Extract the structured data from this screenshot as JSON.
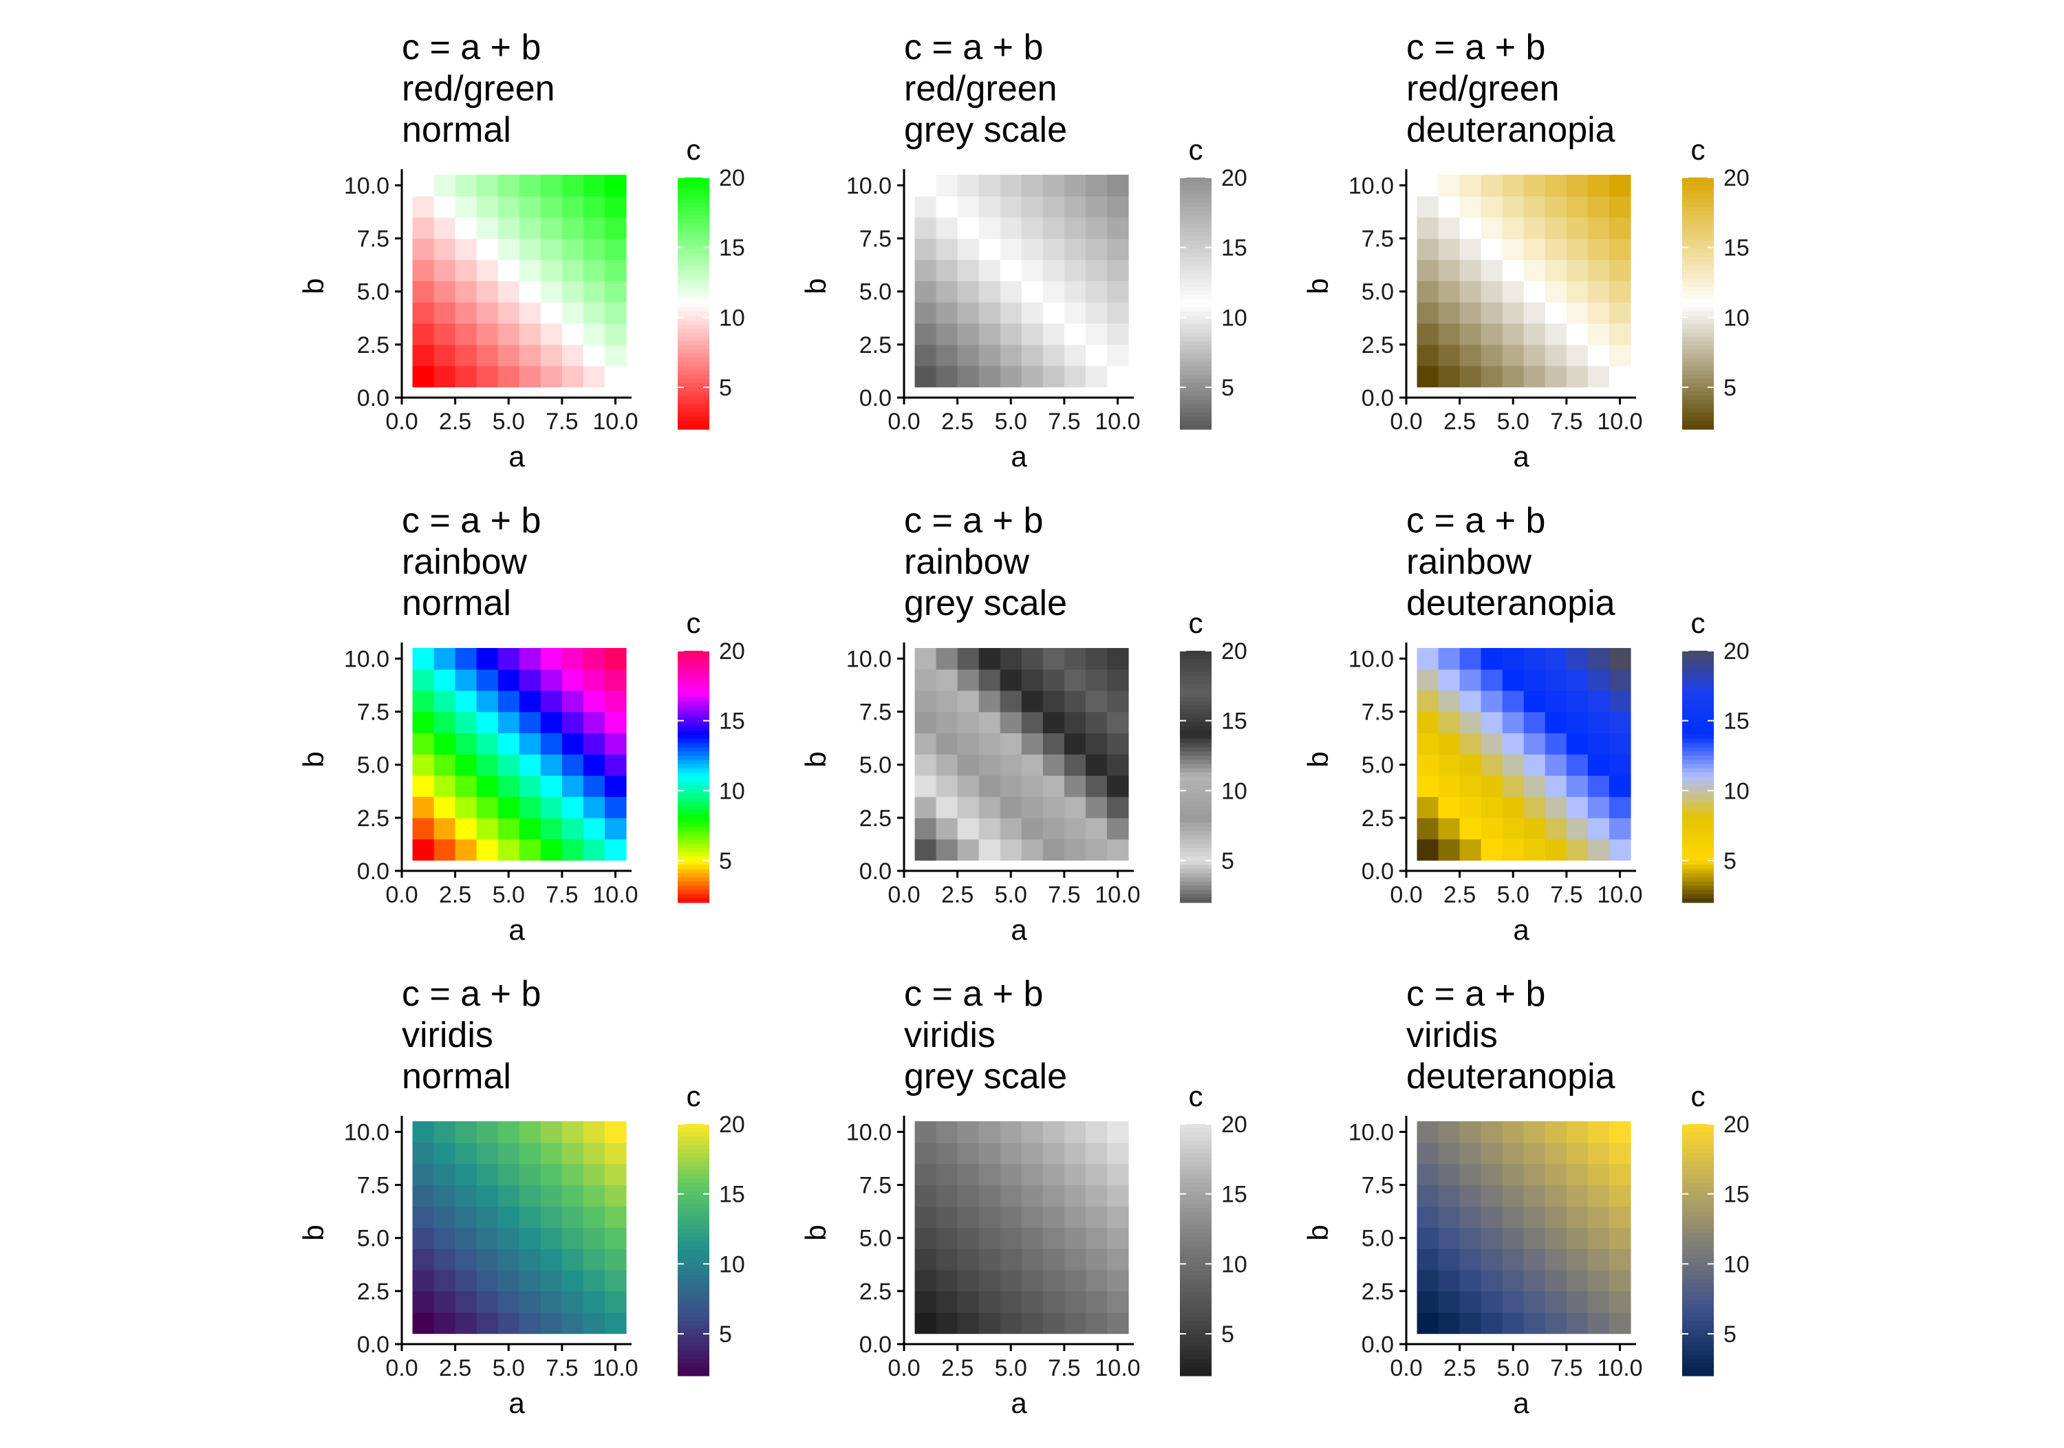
{
  "chart_data": {
    "type": "heatmap",
    "formula_label": "c = a + b",
    "x_label": "a",
    "y_label": "b",
    "legend_title": "c",
    "x_ticks": [
      "0.0",
      "2.5",
      "5.0",
      "7.5",
      "10.0"
    ],
    "y_ticks": [
      "0.0",
      "2.5",
      "5.0",
      "7.5",
      "10.0"
    ],
    "legend_ticks": [
      "5",
      "10",
      "15",
      "20"
    ],
    "xlim": [
      0,
      10.5
    ],
    "ylim": [
      0,
      10.5
    ],
    "a_values": [
      1,
      2,
      3,
      4,
      5,
      6,
      7,
      8,
      9,
      10
    ],
    "b_values": [
      1,
      2,
      3,
      4,
      5,
      6,
      7,
      8,
      9,
      10
    ],
    "c_range": [
      2,
      20
    ],
    "note": "",
    "panels": [
      {
        "scheme": "red/green",
        "view": "normal",
        "colors": [
          "#ff0000",
          "#ffffff",
          "#00ff00"
        ]
      },
      {
        "scheme": "red/green",
        "view": "grey scale",
        "colors": [
          "#585858",
          "#ffffff",
          "#919191"
        ]
      },
      {
        "scheme": "red/green",
        "view": "deuteranopia",
        "colors": [
          "#5c4500",
          "#ffffff",
          "#d9a800"
        ]
      },
      {
        "scheme": "rainbow",
        "view": "normal",
        "colors": [
          "#ff0000",
          "#ffff00",
          "#00ff00",
          "#00ffff",
          "#0000ff",
          "#ff00ff",
          "#ff0066"
        ]
      },
      {
        "scheme": "rainbow",
        "view": "grey scale",
        "colors": [
          "#555555",
          "#dedede",
          "#9a9a9a",
          "#b4b4b4",
          "#2b2b2b",
          "#606060",
          "#3c3c3c"
        ]
      },
      {
        "scheme": "rainbow",
        "view": "deuteranopia",
        "colors": [
          "#4a3800",
          "#ffd800",
          "#e6c400",
          "#b0bfff",
          "#0030ff",
          "#1a3ff0",
          "#4a4a60"
        ]
      },
      {
        "scheme": "viridis",
        "view": "normal",
        "colors": [
          "#440154",
          "#3b528b",
          "#21908c",
          "#5dc863",
          "#fde725"
        ]
      },
      {
        "scheme": "viridis",
        "view": "grey scale",
        "colors": [
          "#1e1e1e",
          "#4f4f4f",
          "#777777",
          "#a8a8a8",
          "#e4e4e4"
        ]
      },
      {
        "scheme": "viridis",
        "view": "deuteranopia",
        "colors": [
          "#00204d",
          "#3b4f8a",
          "#7c7b78",
          "#bcaa5e",
          "#ffd92a"
        ]
      }
    ]
  }
}
